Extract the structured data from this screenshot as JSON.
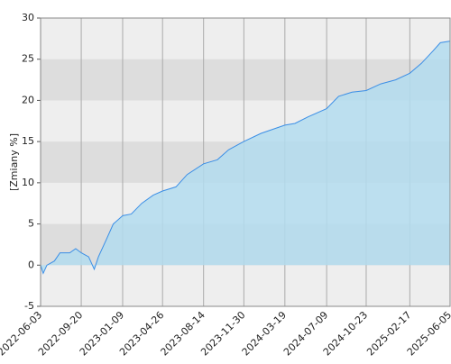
{
  "chart_data": {
    "type": "area",
    "y_label": "[Zmiany %]",
    "x": [
      "2022-06-03",
      "2022-06-10",
      "2022-06-20",
      "2022-07-10",
      "2022-07-25",
      "2022-08-20",
      "2022-09-05",
      "2022-09-20",
      "2022-10-10",
      "2022-10-25",
      "2022-11-05",
      "2022-11-25",
      "2022-12-15",
      "2023-01-09",
      "2023-02-01",
      "2023-03-01",
      "2023-04-01",
      "2023-04-26",
      "2023-06-01",
      "2023-07-01",
      "2023-08-14",
      "2023-09-20",
      "2023-10-20",
      "2023-11-30",
      "2024-01-15",
      "2024-03-19",
      "2024-04-15",
      "2024-05-20",
      "2024-07-09",
      "2024-08-10",
      "2024-09-15",
      "2024-10-23",
      "2024-12-01",
      "2025-01-10",
      "2025-02-17",
      "2025-03-20",
      "2025-04-20",
      "2025-05-10",
      "2025-06-05"
    ],
    "series": [
      {
        "color": "#3a8ee6",
        "fill": "#b3dcee",
        "values": [
          0,
          -1,
          0,
          0.5,
          1.5,
          1.5,
          2,
          1.5,
          1,
          -0.5,
          1,
          3,
          5,
          6,
          6.2,
          7.5,
          8.5,
          9,
          9.5,
          11,
          12.3,
          12.8,
          14,
          15,
          16,
          17,
          17.2,
          18,
          19,
          20.5,
          21,
          21.2,
          22,
          22.5,
          23.3,
          24.5,
          26,
          27,
          27.2
        ]
      }
    ],
    "xlim": [
      "2022-06-03",
      "2025-06-05"
    ],
    "xticks": [
      "2022-06-03",
      "2022-09-20",
      "2023-01-09",
      "2023-04-26",
      "2023-08-14",
      "2023-11-30",
      "2024-03-19",
      "2024-07-09",
      "2024-10-23",
      "2025-02-17",
      "2025-06-05"
    ],
    "ylim": [
      -5,
      30
    ],
    "yticks": [
      -5,
      0,
      5,
      10,
      15,
      20,
      25,
      30
    ],
    "grid": true
  }
}
